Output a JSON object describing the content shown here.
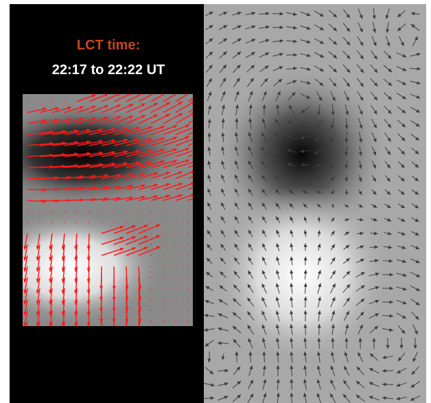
{
  "title": "LCT time:",
  "time_range": "22:17 to 22:22 UT"
}
